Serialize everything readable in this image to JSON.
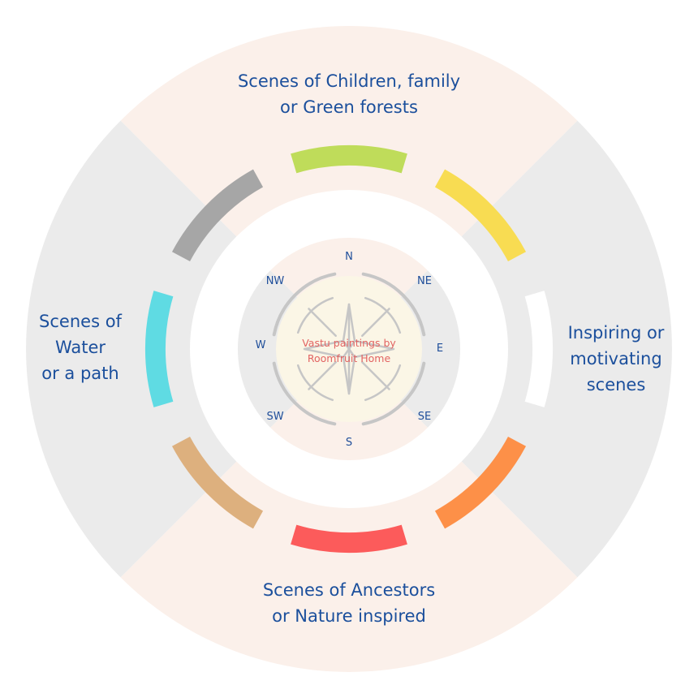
{
  "directions": {
    "north": "N",
    "north_east": "NE",
    "east": "E",
    "south_east": "SE",
    "south": "S",
    "south_west": "SW",
    "west": "W",
    "north_west": "NW"
  },
  "center": {
    "line1": "Vastu paintings by",
    "line2": "Roomfruit Home"
  },
  "sections": {
    "north": {
      "line1": "Scenes of Children, family",
      "line2": "or Green forests"
    },
    "east": {
      "line1": "Inspiring or",
      "line2": "motivating",
      "line3": "scenes"
    },
    "south": {
      "line1": "Scenes of Ancestors",
      "line2": "or Nature inspired"
    },
    "west": {
      "line1": "Scenes of",
      "line2": "Water",
      "line3": "or a path"
    }
  },
  "colors": {
    "north_segment": "#bfdc5a",
    "north_east_segment": "#f8dc52",
    "east_segment": "#ffffff",
    "south_east_segment": "#fd9048",
    "south_segment": "#fc5b5b",
    "south_west_segment": "#ddb07e",
    "west_segment": "#5fdbe3",
    "north_west_segment": "#a6a6a6",
    "north_south_quadrant": "#fbf0ea",
    "east_west_quadrant": "#ebebeb",
    "text_blue": "#1b4f9c",
    "center_text": "#e26463"
  }
}
